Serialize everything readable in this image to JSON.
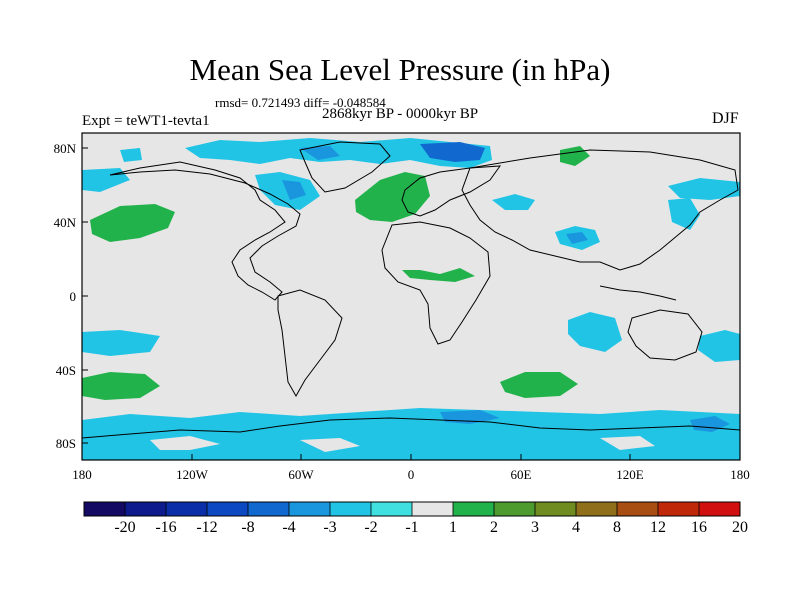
{
  "title": "Mean Sea Level Pressure (in hPa)",
  "stats": "rmsd= 0.721493 diff= -0.048584",
  "experiment": "Expt = teWT1-tevta1",
  "period": "2868kyr BP - 0000kyr BP",
  "season": "DJF",
  "lat_labels": [
    "80N",
    "40N",
    "0",
    "40S",
    "80S"
  ],
  "lon_labels": [
    "180",
    "120W",
    "60W",
    "0",
    "60E",
    "120E",
    "180"
  ],
  "colorbar": {
    "labels": [
      "-20",
      "-16",
      "-12",
      "-8",
      "-4",
      "-3",
      "-2",
      "-1",
      "1",
      "2",
      "3",
      "4",
      "8",
      "12",
      "16",
      "20"
    ],
    "colors": [
      "#140a63",
      "#0d1b8c",
      "#0a2ea8",
      "#0b48c2",
      "#1169cf",
      "#1a96de",
      "#22c4e6",
      "#40e0e0",
      "#e6e6e6",
      "#22b24c",
      "#4d9a2e",
      "#6e8c1f",
      "#8f6f1a",
      "#a84e12",
      "#c0280a",
      "#d20f0f"
    ]
  }
}
